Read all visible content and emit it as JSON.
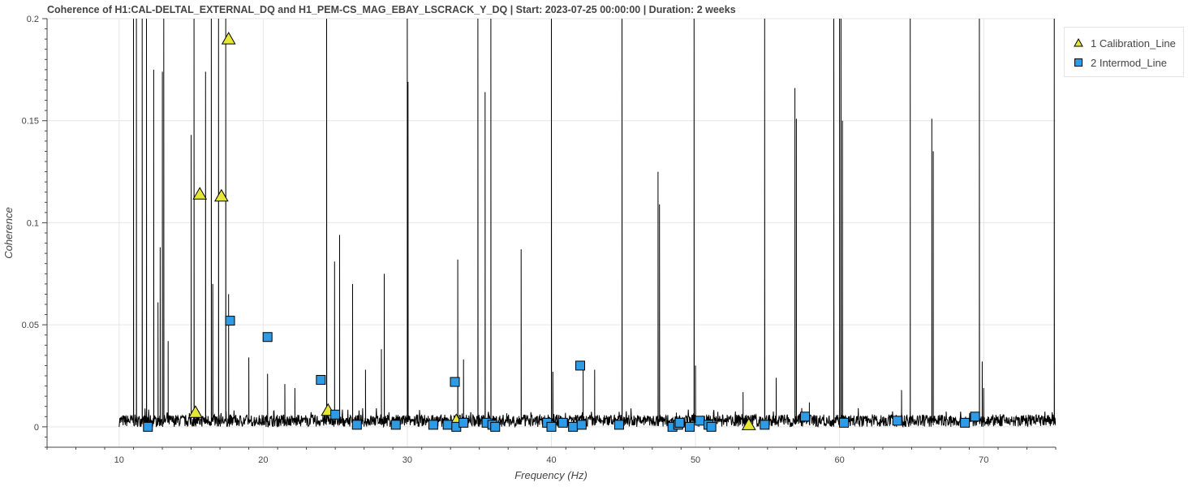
{
  "chart_data": {
    "type": "line",
    "title": "Coherence of H1:CAL-DELTAL_EXTERNAL_DQ and H1_PEM-CS_MAG_EBAY_LSCRACK_Y_DQ | Start: 2023-07-25 00:00:00 | Duration: 2 weeks",
    "xlabel": "Frequency (Hz)",
    "ylabel": "Coherence",
    "xlim": [
      5,
      75
    ],
    "ylim": [
      -0.01,
      0.2
    ],
    "x_ticks": [
      10,
      20,
      30,
      40,
      50,
      60,
      70
    ],
    "x_tick_labels": [
      "10",
      "20",
      "30",
      "40",
      "50",
      "60",
      "70"
    ],
    "y_ticks": [
      0,
      0.05,
      0.1,
      0.15,
      0.2
    ],
    "y_tick_labels": [
      "0",
      "0.05",
      "0.1",
      "0.15",
      "0.2"
    ],
    "grid": true,
    "legend_position": "top-right",
    "colors": {
      "line": "#000000",
      "calibration": "#e6e639",
      "intermod": "#2e9be6",
      "grid": "#e6e6e6",
      "marker_edge": "#000000"
    },
    "line_series": {
      "x_start": 10,
      "x_end": 75,
      "noise_floor": [
        0,
        0.006
      ],
      "peaks": [
        {
          "x": 11.0,
          "y": 0.2
        },
        {
          "x": 11.2,
          "y": 0.2
        },
        {
          "x": 11.6,
          "y": 0.2
        },
        {
          "x": 11.9,
          "y": 0.2
        },
        {
          "x": 12.4,
          "y": 0.175
        },
        {
          "x": 12.7,
          "y": 0.061
        },
        {
          "x": 12.85,
          "y": 0.088
        },
        {
          "x": 13.0,
          "y": 0.174
        },
        {
          "x": 13.1,
          "y": 0.2
        },
        {
          "x": 13.4,
          "y": 0.042
        },
        {
          "x": 15.0,
          "y": 0.143
        },
        {
          "x": 15.2,
          "y": 0.2
        },
        {
          "x": 16.0,
          "y": 0.174
        },
        {
          "x": 16.4,
          "y": 0.2
        },
        {
          "x": 16.5,
          "y": 0.07
        },
        {
          "x": 16.9,
          "y": 0.2
        },
        {
          "x": 17.4,
          "y": 0.2
        },
        {
          "x": 17.6,
          "y": 0.065
        },
        {
          "x": 19.0,
          "y": 0.034
        },
        {
          "x": 20.3,
          "y": 0.026
        },
        {
          "x": 21.5,
          "y": 0.021
        },
        {
          "x": 22.2,
          "y": 0.019
        },
        {
          "x": 24.4,
          "y": 0.2
        },
        {
          "x": 24.95,
          "y": 0.081
        },
        {
          "x": 25.3,
          "y": 0.094
        },
        {
          "x": 26.2,
          "y": 0.07
        },
        {
          "x": 27.1,
          "y": 0.028
        },
        {
          "x": 28.2,
          "y": 0.038
        },
        {
          "x": 28.4,
          "y": 0.075
        },
        {
          "x": 30.0,
          "y": 0.2
        },
        {
          "x": 30.05,
          "y": 0.169
        },
        {
          "x": 33.5,
          "y": 0.082
        },
        {
          "x": 33.9,
          "y": 0.033
        },
        {
          "x": 34.9,
          "y": 0.2
        },
        {
          "x": 35.4,
          "y": 0.164
        },
        {
          "x": 35.8,
          "y": 0.2
        },
        {
          "x": 37.9,
          "y": 0.087
        },
        {
          "x": 40.0,
          "y": 0.2
        },
        {
          "x": 40.1,
          "y": 0.027
        },
        {
          "x": 42.2,
          "y": 0.03
        },
        {
          "x": 43.0,
          "y": 0.028
        },
        {
          "x": 44.9,
          "y": 0.2
        },
        {
          "x": 47.4,
          "y": 0.125
        },
        {
          "x": 47.5,
          "y": 0.109
        },
        {
          "x": 49.9,
          "y": 0.2
        },
        {
          "x": 50.0,
          "y": 0.03
        },
        {
          "x": 53.3,
          "y": 0.017
        },
        {
          "x": 54.8,
          "y": 0.2
        },
        {
          "x": 55.6,
          "y": 0.024
        },
        {
          "x": 56.9,
          "y": 0.166
        },
        {
          "x": 57.0,
          "y": 0.151
        },
        {
          "x": 57.9,
          "y": 0.012
        },
        {
          "x": 59.6,
          "y": 0.2
        },
        {
          "x": 60.0,
          "y": 0.2
        },
        {
          "x": 60.1,
          "y": 0.2
        },
        {
          "x": 60.2,
          "y": 0.15
        },
        {
          "x": 64.3,
          "y": 0.018
        },
        {
          "x": 64.9,
          "y": 0.2
        },
        {
          "x": 66.4,
          "y": 0.151
        },
        {
          "x": 66.5,
          "y": 0.135
        },
        {
          "x": 69.7,
          "y": 0.2
        },
        {
          "x": 69.9,
          "y": 0.032
        },
        {
          "x": 70.0,
          "y": 0.019
        },
        {
          "x": 74.9,
          "y": 0.2
        }
      ]
    },
    "series": [
      {
        "name": "1 Calibration_Line",
        "marker": "triangle",
        "points": [
          {
            "x": 15.3,
            "y": 0.007
          },
          {
            "x": 15.6,
            "y": 0.114
          },
          {
            "x": 17.1,
            "y": 0.113
          },
          {
            "x": 17.6,
            "y": 0.19
          },
          {
            "x": 24.5,
            "y": 0.008
          },
          {
            "x": 33.4,
            "y": 0.003
          },
          {
            "x": 53.7,
            "y": 0.001
          }
        ]
      },
      {
        "name": "2 Intermod_Line",
        "marker": "square",
        "points": [
          {
            "x": 12.0,
            "y": 0.0
          },
          {
            "x": 17.7,
            "y": 0.052
          },
          {
            "x": 20.3,
            "y": 0.044
          },
          {
            "x": 24.0,
            "y": 0.023
          },
          {
            "x": 25.0,
            "y": 0.006
          },
          {
            "x": 26.5,
            "y": 0.001
          },
          {
            "x": 29.2,
            "y": 0.001
          },
          {
            "x": 31.8,
            "y": 0.001
          },
          {
            "x": 32.8,
            "y": 0.001
          },
          {
            "x": 33.3,
            "y": 0.022
          },
          {
            "x": 33.4,
            "y": 0.0
          },
          {
            "x": 33.9,
            "y": 0.002
          },
          {
            "x": 35.5,
            "y": 0.002
          },
          {
            "x": 35.9,
            "y": 0.001
          },
          {
            "x": 36.1,
            "y": 0.0
          },
          {
            "x": 39.7,
            "y": 0.002
          },
          {
            "x": 40.0,
            "y": 0.0
          },
          {
            "x": 40.8,
            "y": 0.002
          },
          {
            "x": 41.5,
            "y": 0.0
          },
          {
            "x": 42.0,
            "y": 0.03
          },
          {
            "x": 42.1,
            "y": 0.001
          },
          {
            "x": 44.7,
            "y": 0.001
          },
          {
            "x": 48.4,
            "y": 0.0
          },
          {
            "x": 48.8,
            "y": 0.001
          },
          {
            "x": 48.9,
            "y": 0.002
          },
          {
            "x": 49.6,
            "y": 0.0
          },
          {
            "x": 50.3,
            "y": 0.003
          },
          {
            "x": 50.9,
            "y": 0.001
          },
          {
            "x": 51.1,
            "y": 0.0
          },
          {
            "x": 54.8,
            "y": 0.001
          },
          {
            "x": 57.6,
            "y": 0.005
          },
          {
            "x": 60.3,
            "y": 0.002
          },
          {
            "x": 64.0,
            "y": 0.003
          },
          {
            "x": 68.7,
            "y": 0.002
          },
          {
            "x": 69.4,
            "y": 0.005
          }
        ]
      }
    ]
  }
}
